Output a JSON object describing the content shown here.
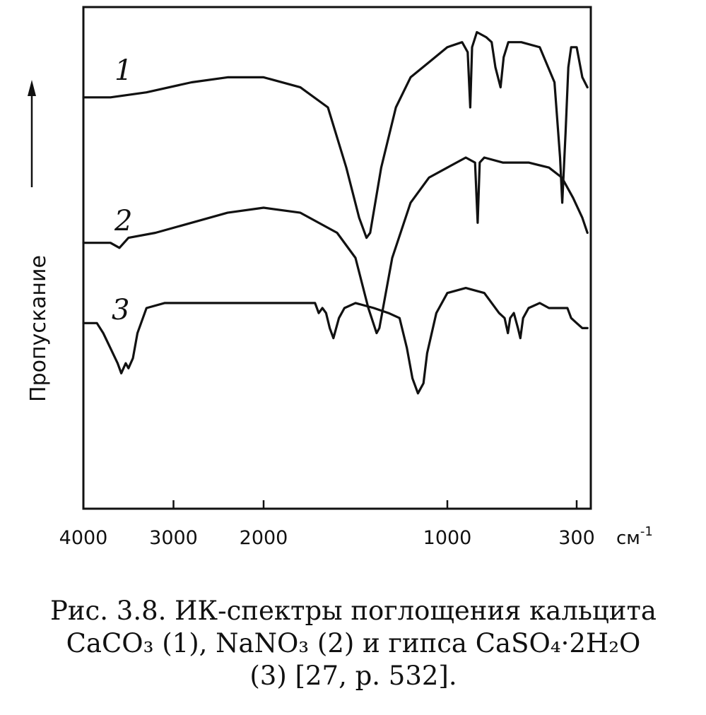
{
  "chart_data": {
    "type": "line",
    "ylabel": "Пропускание",
    "xunit": "см",
    "xunit_sup": "-1",
    "x_ticks": [
      4000,
      3000,
      2000,
      1000,
      300
    ],
    "x_tick_labels": [
      "4000",
      "3000",
      "2000",
      "1000",
      "300"
    ],
    "xlim": [
      4000,
      250
    ],
    "grid": false,
    "legend": "none",
    "series": [
      {
        "name": "1",
        "points": [
          [
            4000,
            0.82
          ],
          [
            3700,
            0.82
          ],
          [
            3300,
            0.83
          ],
          [
            2800,
            0.85
          ],
          [
            2400,
            0.86
          ],
          [
            2000,
            0.86
          ],
          [
            1800,
            0.84
          ],
          [
            1650,
            0.8
          ],
          [
            1550,
            0.68
          ],
          [
            1480,
            0.58
          ],
          [
            1440,
            0.54
          ],
          [
            1420,
            0.55
          ],
          [
            1360,
            0.68
          ],
          [
            1280,
            0.8
          ],
          [
            1200,
            0.86
          ],
          [
            1100,
            0.89
          ],
          [
            1000,
            0.92
          ],
          [
            920,
            0.93
          ],
          [
            890,
            0.91
          ],
          [
            876,
            0.8
          ],
          [
            866,
            0.92
          ],
          [
            840,
            0.95
          ],
          [
            790,
            0.94
          ],
          [
            760,
            0.93
          ],
          [
            740,
            0.88
          ],
          [
            712,
            0.84
          ],
          [
            695,
            0.9
          ],
          [
            670,
            0.93
          ],
          [
            600,
            0.93
          ],
          [
            500,
            0.92
          ],
          [
            420,
            0.85
          ],
          [
            390,
            0.7
          ],
          [
            378,
            0.61
          ],
          [
            360,
            0.75
          ],
          [
            345,
            0.88
          ],
          [
            330,
            0.92
          ],
          [
            300,
            0.92
          ],
          [
            280,
            0.86
          ],
          [
            262,
            0.84
          ]
        ]
      },
      {
        "name": "2",
        "points": [
          [
            4000,
            0.53
          ],
          [
            3700,
            0.53
          ],
          [
            3600,
            0.52
          ],
          [
            3500,
            0.54
          ],
          [
            3200,
            0.55
          ],
          [
            2800,
            0.57
          ],
          [
            2400,
            0.59
          ],
          [
            2000,
            0.6
          ],
          [
            1800,
            0.59
          ],
          [
            1600,
            0.55
          ],
          [
            1500,
            0.5
          ],
          [
            1430,
            0.4
          ],
          [
            1385,
            0.35
          ],
          [
            1370,
            0.36
          ],
          [
            1300,
            0.5
          ],
          [
            1200,
            0.61
          ],
          [
            1100,
            0.66
          ],
          [
            1000,
            0.68
          ],
          [
            900,
            0.7
          ],
          [
            850,
            0.69
          ],
          [
            836,
            0.57
          ],
          [
            825,
            0.69
          ],
          [
            800,
            0.7
          ],
          [
            700,
            0.69
          ],
          [
            560,
            0.69
          ],
          [
            450,
            0.68
          ],
          [
            380,
            0.66
          ],
          [
            320,
            0.62
          ],
          [
            280,
            0.58
          ],
          [
            262,
            0.55
          ]
        ]
      },
      {
        "name": "3",
        "points": [
          [
            4000,
            0.37
          ],
          [
            3850,
            0.37
          ],
          [
            3780,
            0.35
          ],
          [
            3700,
            0.32
          ],
          [
            3620,
            0.29
          ],
          [
            3580,
            0.27
          ],
          [
            3530,
            0.29
          ],
          [
            3500,
            0.28
          ],
          [
            3450,
            0.3
          ],
          [
            3400,
            0.35
          ],
          [
            3300,
            0.4
          ],
          [
            3100,
            0.41
          ],
          [
            2500,
            0.41
          ],
          [
            1800,
            0.41
          ],
          [
            1720,
            0.41
          ],
          [
            1700,
            0.39
          ],
          [
            1680,
            0.4
          ],
          [
            1660,
            0.39
          ],
          [
            1640,
            0.36
          ],
          [
            1620,
            0.34
          ],
          [
            1590,
            0.38
          ],
          [
            1560,
            0.4
          ],
          [
            1500,
            0.41
          ],
          [
            1400,
            0.4
          ],
          [
            1320,
            0.39
          ],
          [
            1260,
            0.38
          ],
          [
            1220,
            0.32
          ],
          [
            1190,
            0.26
          ],
          [
            1160,
            0.23
          ],
          [
            1130,
            0.25
          ],
          [
            1110,
            0.31
          ],
          [
            1060,
            0.39
          ],
          [
            1000,
            0.43
          ],
          [
            900,
            0.44
          ],
          [
            800,
            0.43
          ],
          [
            720,
            0.39
          ],
          [
            690,
            0.38
          ],
          [
            672,
            0.35
          ],
          [
            660,
            0.38
          ],
          [
            640,
            0.39
          ],
          [
            618,
            0.36
          ],
          [
            605,
            0.34
          ],
          [
            590,
            0.38
          ],
          [
            560,
            0.4
          ],
          [
            500,
            0.41
          ],
          [
            450,
            0.4
          ],
          [
            400,
            0.4
          ],
          [
            350,
            0.4
          ],
          [
            330,
            0.38
          ],
          [
            300,
            0.37
          ],
          [
            280,
            0.36
          ],
          [
            262,
            0.36
          ]
        ]
      }
    ]
  },
  "curve_labels": [
    "1",
    "2",
    "3"
  ],
  "caption": {
    "line1": "Рис. 3.8. ИК-спектры поглощения кальцита",
    "line2": "CaCO₃ (1), NaNO₃ (2) и гипса CaSO₄·2H₂O",
    "line3": "(3) [27, р. 532]."
  }
}
